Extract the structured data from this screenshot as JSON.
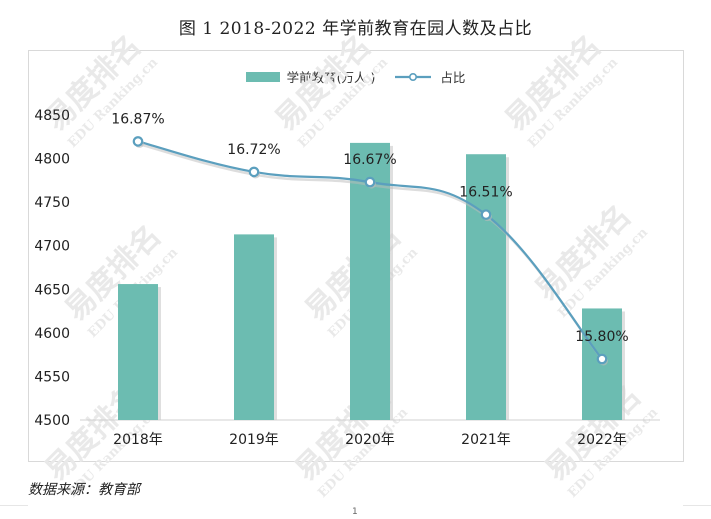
{
  "title": "图 1 2018-2022 年学前教育在园人数及占比",
  "legend": {
    "bar_label": "学前教育(万人 )",
    "line_label": "占比"
  },
  "source": "数据来源：教育部",
  "page_number": "1",
  "watermark_text": "易度排名",
  "watermark_subtext": "EDU Ranking.cn",
  "colors": {
    "bar": "#6cbcb1",
    "bar_shadow": "#c9c9c9",
    "line": "#5b9fbe",
    "marker_fill": "#ffffff",
    "grid": "#e6e6e6",
    "watermark": "#e9e9e9"
  },
  "chart_data": {
    "type": "bar",
    "categories": [
      "2018年",
      "2019年",
      "2020年",
      "2021年",
      "2022年"
    ],
    "series": [
      {
        "name": "学前教育(万人 )",
        "type": "bar",
        "values": [
          4656,
          4713,
          4818,
          4805,
          4628
        ]
      },
      {
        "name": "占比",
        "type": "line",
        "values": [
          16.87,
          16.72,
          16.67,
          16.51,
          15.8
        ],
        "labels": [
          "16.87%",
          "16.72%",
          "16.67%",
          "16.51%",
          "15.80%"
        ]
      }
    ],
    "ylim": [
      4500,
      4850
    ],
    "yticks": [
      4500,
      4550,
      4600,
      4650,
      4700,
      4750,
      4800,
      4850
    ],
    "y2lim": [
      15.5,
      17.0
    ],
    "legend_position": "top-center",
    "grid": false
  }
}
